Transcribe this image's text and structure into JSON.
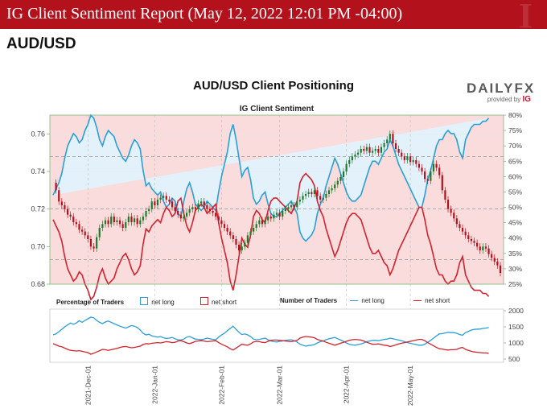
{
  "banner": {
    "title": "IG Client Sentiment Report (May 12, 2022 12:01 PM -04:00)"
  },
  "pair": "AUD/USD",
  "chart": {
    "title": "AUD/USD Client Positioning",
    "subtitle": "IG Client Sentiment",
    "logo_main": "DAILYFX",
    "logo_sub": "provided by",
    "logo_brand": "IG"
  },
  "legend": {
    "pct_title": "Percentage of Traders",
    "net_long": "net long",
    "net_short": "net short",
    "num_title": "Number of Traders"
  },
  "colors": {
    "banner": "#b3121d",
    "long": "#2a9fd8",
    "short": "#d0232f",
    "up": "#1f7a2e",
    "down": "#b3121d"
  },
  "chart_data": [
    {
      "type": "candlestick",
      "title": "IG Client Sentiment",
      "x_labels": [
        "2021-Dec-01",
        "2022-Jan-01",
        "2022-Feb-01",
        "2022-Mar-01",
        "2022-Apr-01",
        "2022-May-01"
      ],
      "y_ticks": [
        "0.68",
        "0.70",
        "0.72",
        "0.74",
        "0.76"
      ],
      "ylim": [
        0.68,
        0.77
      ],
      "right_ticks": [
        "25%",
        "30%",
        "35%",
        "40%",
        "45%",
        "50%",
        "55%",
        "60%",
        "65%",
        "70%",
        "75%",
        "80%"
      ],
      "right_lim": [
        25,
        80
      ],
      "close": [
        0.734,
        0.73,
        0.724,
        0.722,
        0.72,
        0.717,
        0.716,
        0.713,
        0.712,
        0.709,
        0.708,
        0.706,
        0.704,
        0.7,
        0.699,
        0.705,
        0.71,
        0.712,
        0.714,
        0.712,
        0.716,
        0.713,
        0.714,
        0.712,
        0.71,
        0.713,
        0.716,
        0.713,
        0.715,
        0.712,
        0.714,
        0.716,
        0.719,
        0.72,
        0.724,
        0.722,
        0.725,
        0.726,
        0.727,
        0.725,
        0.724,
        0.721,
        0.719,
        0.717,
        0.715,
        0.716,
        0.718,
        0.72,
        0.721,
        0.72,
        0.723,
        0.724,
        0.722,
        0.72,
        0.719,
        0.718,
        0.716,
        0.714,
        0.712,
        0.71,
        0.708,
        0.706,
        0.704,
        0.701,
        0.698,
        0.7,
        0.702,
        0.706,
        0.708,
        0.71,
        0.712,
        0.714,
        0.712,
        0.714,
        0.716,
        0.715,
        0.717,
        0.718,
        0.716,
        0.719,
        0.72,
        0.721,
        0.722,
        0.721,
        0.724,
        0.725,
        0.727,
        0.728,
        0.729,
        0.728,
        0.73,
        0.727,
        0.725,
        0.726,
        0.728,
        0.73,
        0.731,
        0.733,
        0.735,
        0.737,
        0.74,
        0.744,
        0.746,
        0.748,
        0.749,
        0.75,
        0.752,
        0.751,
        0.753,
        0.75,
        0.751,
        0.752,
        0.75,
        0.753,
        0.755,
        0.757,
        0.76,
        0.755,
        0.752,
        0.75,
        0.748,
        0.746,
        0.748,
        0.745,
        0.746,
        0.744,
        0.742,
        0.74,
        0.736,
        0.735,
        0.74,
        0.744,
        0.742,
        0.738,
        0.73,
        0.725,
        0.72,
        0.718,
        0.715,
        0.712,
        0.71,
        0.708,
        0.706,
        0.704,
        0.703,
        0.702,
        0.7,
        0.698,
        0.7,
        0.699,
        0.696,
        0.694,
        0.692,
        0.69,
        0.686
      ],
      "dashed_levels": [
        0.748,
        0.72,
        0.693
      ],
      "series": [
        {
          "name": "net long",
          "values": [
            54,
            56,
            58,
            61,
            66,
            70,
            72,
            74,
            73,
            71,
            72,
            75,
            77,
            80,
            79,
            76,
            72,
            70,
            73,
            75,
            74,
            73,
            70,
            68,
            66,
            65,
            67,
            70,
            72,
            71,
            69,
            62,
            57,
            58,
            56,
            55,
            54,
            55,
            52,
            50,
            51,
            53,
            52,
            48,
            47,
            52,
            56,
            58,
            55,
            51,
            50,
            49,
            50,
            52,
            51,
            50,
            49,
            55,
            60,
            64,
            68,
            74,
            77,
            72,
            66,
            60,
            62,
            63,
            59,
            53,
            51,
            52,
            54,
            55,
            51,
            48,
            47,
            47,
            48,
            49,
            50,
            51,
            52,
            50,
            48,
            42,
            40,
            39,
            40,
            41,
            43,
            48,
            51,
            53,
            57,
            60,
            63,
            66,
            64,
            61,
            58,
            55,
            53,
            52,
            52,
            53,
            54,
            57,
            60,
            63,
            65,
            65,
            64,
            66,
            68,
            69,
            72,
            70,
            67,
            64,
            62,
            60,
            58,
            56,
            54,
            52,
            50,
            50,
            54,
            59,
            62,
            66,
            70,
            72,
            72,
            74,
            75,
            74,
            74,
            72,
            68,
            66,
            72,
            74,
            76,
            77,
            77,
            77,
            78,
            78,
            79
          ]
        },
        {
          "name": "net short",
          "values": [
            46,
            44,
            42,
            39,
            34,
            30,
            28,
            26,
            27,
            29,
            28,
            25,
            23,
            20,
            21,
            24,
            28,
            30,
            27,
            25,
            26,
            27,
            30,
            32,
            34,
            35,
            33,
            30,
            28,
            29,
            31,
            38,
            43,
            42,
            44,
            45,
            46,
            45,
            48,
            50,
            49,
            47,
            48,
            52,
            53,
            48,
            44,
            42,
            45,
            49,
            50,
            51,
            50,
            48,
            49,
            50,
            51,
            45,
            40,
            36,
            32,
            26,
            23,
            28,
            34,
            40,
            38,
            37,
            41,
            47,
            49,
            48,
            46,
            45,
            49,
            52,
            53,
            53,
            52,
            51,
            50,
            49,
            48,
            50,
            52,
            58,
            60,
            61,
            60,
            59,
            57,
            52,
            49,
            47,
            43,
            40,
            37,
            34,
            36,
            39,
            42,
            45,
            47,
            48,
            48,
            47,
            46,
            43,
            40,
            37,
            35,
            35,
            36,
            34,
            32,
            31,
            28,
            30,
            33,
            36,
            38,
            40,
            42,
            44,
            46,
            48,
            50,
            50,
            46,
            41,
            38,
            34,
            30,
            28,
            28,
            26,
            25,
            26,
            26,
            28,
            32,
            34,
            28,
            26,
            24,
            23,
            23,
            23,
            22,
            22,
            21
          ]
        }
      ]
    },
    {
      "type": "line",
      "title": "Number of Traders",
      "y_ticks": [
        "500",
        "1000",
        "1500",
        "2000"
      ],
      "ylim": [
        400,
        2050
      ],
      "series": [
        {
          "name": "net long",
          "values": [
            1250,
            1280,
            1350,
            1420,
            1500,
            1560,
            1620,
            1580,
            1620,
            1690,
            1640,
            1700,
            1750,
            1800,
            1780,
            1700,
            1640,
            1600,
            1650,
            1680,
            1640,
            1600,
            1560,
            1520,
            1490,
            1460,
            1500,
            1540,
            1520,
            1480,
            1400,
            1300,
            1250,
            1270,
            1220,
            1200,
            1180,
            1200,
            1160,
            1140,
            1150,
            1170,
            1130,
            1100,
            1090,
            1120,
            1180,
            1200,
            1160,
            1120,
            1110,
            1100,
            1120,
            1150,
            1130,
            1110,
            1100,
            1180,
            1250,
            1300,
            1380,
            1450,
            1520,
            1420,
            1330,
            1260,
            1280,
            1250,
            1200,
            1120,
            1100,
            1110,
            1130,
            1150,
            1100,
            1060,
            1040,
            1030,
            1050,
            1060,
            1080,
            1090,
            1100,
            1070,
            1030,
            960,
            930,
            900,
            920,
            930,
            950,
            1000,
            1040,
            1060,
            1100,
            1130,
            1150,
            1170,
            1130,
            1090,
            1050,
            1000,
            960,
            940,
            930,
            950,
            970,
            1000,
            1040,
            1060,
            1080,
            1080,
            1070,
            1090,
            1110,
            1120,
            1150,
            1130,
            1110,
            1090,
            1070,
            1040,
            1010,
            990,
            970,
            950,
            930,
            930,
            960,
            1020,
            1080,
            1150,
            1220,
            1280,
            1290,
            1310,
            1330,
            1320,
            1320,
            1300,
            1260,
            1240,
            1320,
            1360,
            1400,
            1420,
            1430,
            1430,
            1450,
            1460,
            1480
          ]
        },
        {
          "name": "net short",
          "values": [
            980,
            940,
            900,
            880,
            840,
            800,
            770,
            760,
            750,
            760,
            740,
            720,
            700,
            650,
            680,
            720,
            760,
            800,
            790,
            770,
            790,
            810,
            830,
            860,
            880,
            890,
            870,
            850,
            860,
            880,
            900,
            950,
            980,
            970,
            990,
            1000,
            1010,
            1000,
            1020,
            1040,
            1030,
            1010,
            1020,
            1060,
            1070,
            1040,
            1000,
            980,
            1010,
            1050,
            1060,
            1070,
            1060,
            1040,
            1050,
            1060,
            1070,
            1010,
            960,
            920,
            880,
            820,
            780,
            840,
            900,
            960,
            940,
            930,
            970,
            1030,
            1050,
            1040,
            1020,
            1010,
            1050,
            1080,
            1090,
            1090,
            1080,
            1070,
            1060,
            1050,
            1040,
            1060,
            1080,
            1150,
            1180,
            1200,
            1190,
            1180,
            1160,
            1110,
            1080,
            1060,
            1020,
            990,
            960,
            930,
            960,
            990,
            1020,
            1050,
            1080,
            1100,
            1110,
            1100,
            1090,
            1060,
            1020,
            990,
            960,
            960,
            970,
            950,
            930,
            920,
            890,
            910,
            940,
            970,
            990,
            1010,
            1030,
            1050,
            1070,
            1090,
            1110,
            1110,
            1070,
            1010,
            960,
            910,
            860,
            820,
            810,
            790,
            780,
            790,
            790,
            800,
            840,
            860,
            800,
            770,
            740,
            720,
            710,
            700,
            690,
            690,
            680
          ]
        }
      ]
    }
  ]
}
